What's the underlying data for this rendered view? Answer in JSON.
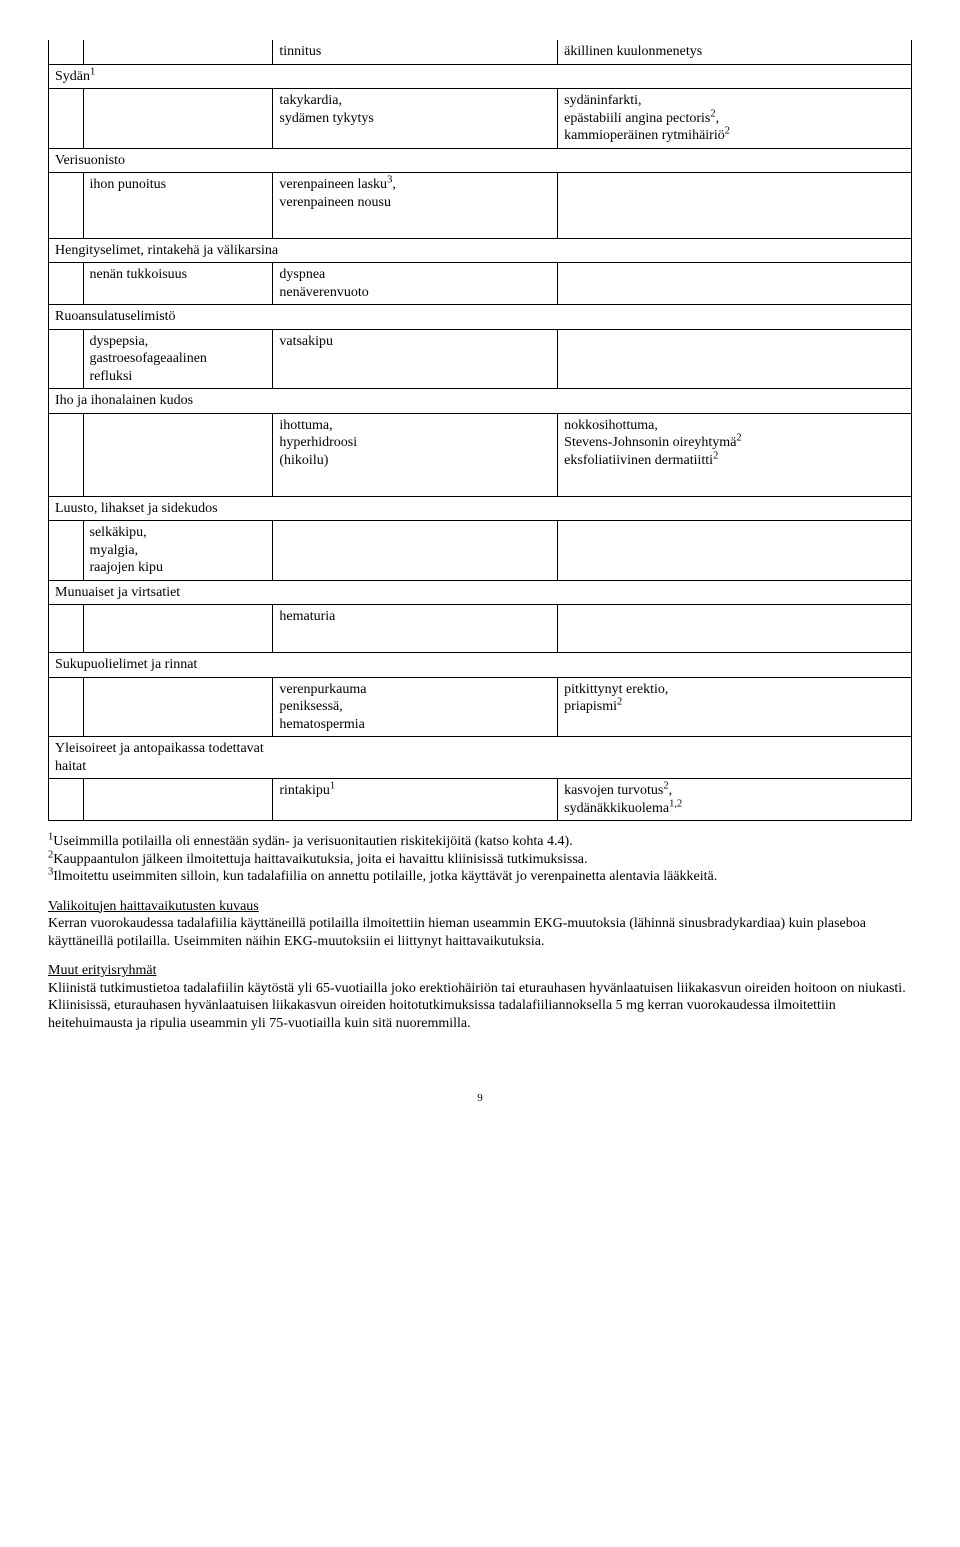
{
  "table": {
    "row_tinnitus": {
      "b": "tinnitus",
      "c": "äkillinen kuulonmenetys"
    },
    "row_sydan": {
      "label": "Sydän",
      "sup": "1"
    },
    "row_taky": {
      "b": "takykardia,\nsydämen tykytys",
      "c": "sydäninfarkti,\nepästabiili angina pectoris",
      "c_sup": "2",
      "c2": ",\nkammioperäinen rytmihäiriö",
      "c2_sup": "2"
    },
    "row_verisuonisto": {
      "label": "Verisuonisto"
    },
    "row_ihon": {
      "a": "ihon punoitus",
      "b": "verenpaineen lasku",
      "b_sup": "3",
      "b2": ",\nverenpaineen nousu"
    },
    "row_hengitys": {
      "label": "Hengityselimet, rintakehä ja välikarsina"
    },
    "row_nenan": {
      "a": "nenän tukkoisuus",
      "b": "dyspnea\nnenäverenvuoto"
    },
    "row_ruoansulatus": {
      "label": "Ruoansulatuselimistö"
    },
    "row_dyspepsia": {
      "a": "dyspepsia,\ngastroesofageaalinen\nrefluksi",
      "b": "vatsakipu"
    },
    "row_iho": {
      "label": "Iho ja ihonalainen kudos"
    },
    "row_ihottuma": {
      "b": "ihottuma,\nhyperhidroosi\n(hikoilu)",
      "c1": "nokkosihottuma,\nStevens-Johnsonin oireyhtymä",
      "c1_sup": "2",
      "c2": "\neksfoliatiivinen dermatiitti",
      "c2_sup": "2"
    },
    "row_luusto": {
      "label": "Luusto, lihakset ja sidekudos"
    },
    "row_selkakipu": {
      "a": "selkäkipu,\nmyalgia,\nraajojen kipu"
    },
    "row_munuaiset": {
      "label": "Munuaiset ja virtsatiet"
    },
    "row_hematuria": {
      "b": "hematuria"
    },
    "row_sukupuoli": {
      "label": "Sukupuolielimet ja rinnat"
    },
    "row_verenpurkauma": {
      "b": "verenpurkauma\npeniksessä,\nhematospermia",
      "c": "pitkittynyt erektio,\npriapismi",
      "c_sup": "2"
    },
    "row_yleisoireet": {
      "label": "Yleisoireet ja antopaikassa todettavat haitat"
    },
    "row_rintakipu": {
      "b": "rintakipu",
      "b_sup": "1",
      "c1": "kasvojen turvotus",
      "c1_sup": "2",
      "c2": ",\nsydänäkkikuolema",
      "c2_sup": "1,2"
    }
  },
  "footnotes": {
    "f1_sup": "1",
    "f1": "Useimmilla potilailla oli ennestään sydän- ja verisuonitautien riskitekijöitä (katso kohta 4.4).",
    "f2_sup": "2",
    "f2": "Kauppaantulon jälkeen ilmoitettuja haittavaikutuksia, joita ei havaittu kliinisissä tutkimuksissa.",
    "f3_sup": "3",
    "f3": "Ilmoitettu useimmiten silloin, kun tadalafiilia on annettu potilaille, jotka käyttävät jo verenpainetta alentavia lääkkeitä."
  },
  "sections": {
    "valikoitujen_title": "Valikoitujen haittavaikutusten kuvaus",
    "valikoitujen_body": "Kerran vuorokaudessa tadalafiilia käyttäneillä potilailla ilmoitettiin hieman useammin EKG-muutoksia (lähinnä sinusbradykardiaa) kuin plaseboa käyttäneillä potilailla. Useimmiten näihin EKG-muutoksiin ei liittynyt haittavaikutuksia.",
    "muut_title": "Muut erityisryhmät",
    "muut_body": "Kliinistä tutkimustietoa tadalafiilin käytöstä yli 65-vuotiailla joko erektiohäiriön tai eturauhasen hyvänlaatuisen liikakasvun oireiden hoitoon on niukasti. Kliinisissä, eturauhasen hyvänlaatuisen liikakasvun oireiden hoitotutkimuksissa tadalafiiliannoksella 5 mg kerran vuorokaudessa ilmoitettiin heitehuimausta ja ripulia useammin yli 75-vuotiailla kuin sitä nuoremmilla."
  },
  "page_number": "9"
}
